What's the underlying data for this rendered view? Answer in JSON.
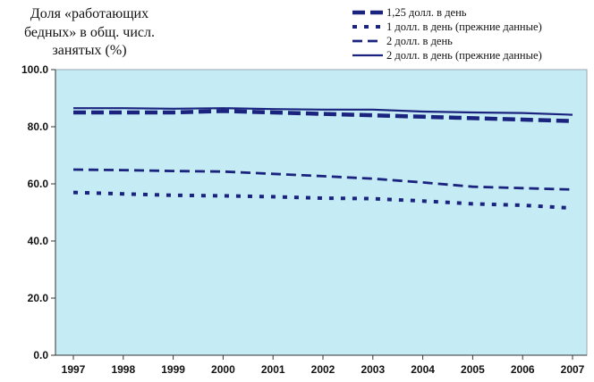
{
  "chart_data": {
    "type": "line",
    "ylabel_lines": [
      "Доля «работающих",
      "бедных» в общ. числ.",
      "занятых (%)"
    ],
    "categories": [
      "1997",
      "1998",
      "1999",
      "2000",
      "2001",
      "2002",
      "2003",
      "2004",
      "2005",
      "2006",
      "2007"
    ],
    "ylim": [
      0,
      100
    ],
    "yticks": [
      "0.0",
      "20.0",
      "40.0",
      "60.0",
      "80.0",
      "100.0"
    ],
    "grid": false,
    "legend_position": "top-right",
    "plot_background": "#c5ecf5",
    "series": [
      {
        "name": "1,25 долл. в день",
        "color": "#1a237e",
        "style": "long-dash",
        "values": [
          85.0,
          85.0,
          85.0,
          85.5,
          85.0,
          84.5,
          84.0,
          83.5,
          83.0,
          82.5,
          82.0
        ]
      },
      {
        "name": "1 долл. в день (прежние данные)",
        "color": "#1a237e",
        "style": "dotted",
        "values": [
          57.0,
          56.5,
          56.0,
          55.8,
          55.5,
          55.0,
          54.8,
          54.0,
          53.0,
          52.5,
          51.5
        ]
      },
      {
        "name": "2 долл. в день",
        "color": "#1a237e",
        "style": "dashed",
        "values": [
          65.0,
          64.8,
          64.5,
          64.3,
          63.5,
          62.7,
          61.8,
          60.5,
          59.0,
          58.5,
          58.0
        ]
      },
      {
        "name": "2 долл. в день (прежние данные)",
        "color": "#1a237e",
        "style": "solid",
        "values": [
          86.5,
          86.5,
          86.3,
          86.5,
          86.2,
          86.0,
          86.0,
          85.3,
          85.0,
          84.8,
          84.2
        ]
      }
    ]
  }
}
